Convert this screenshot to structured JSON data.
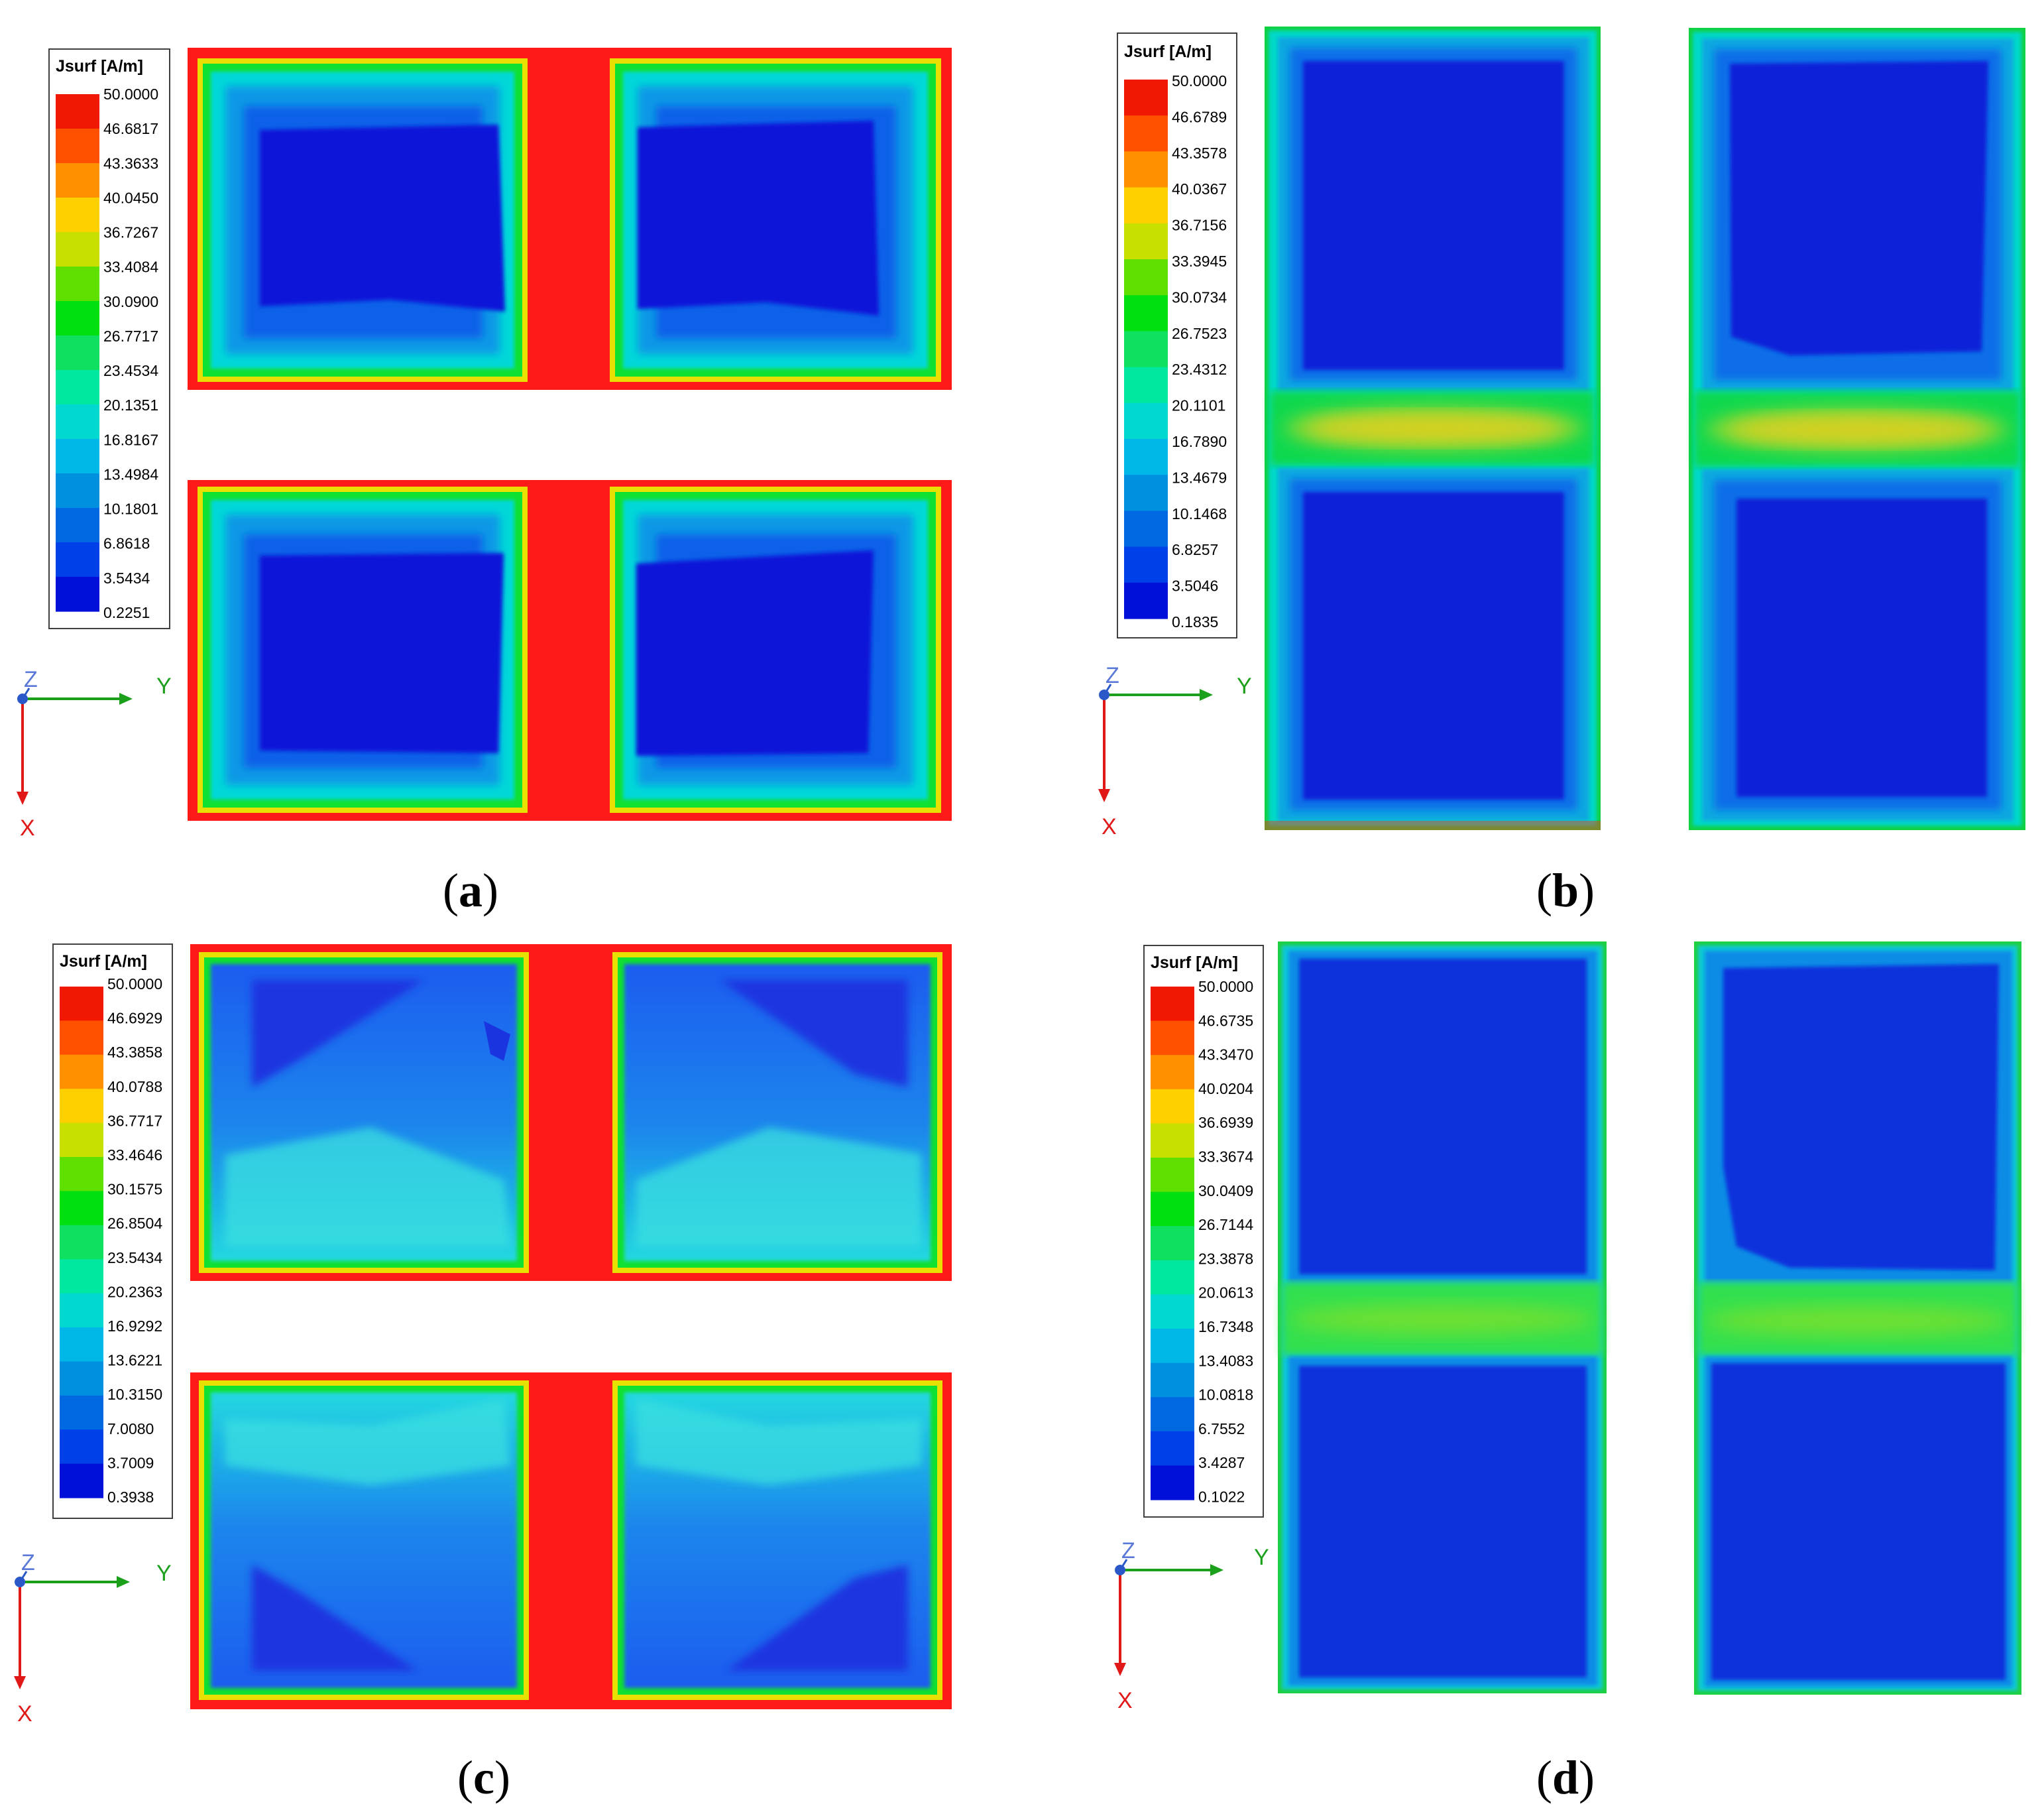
{
  "legend_colors": [
    "#0010d8",
    "#0040e8",
    "#0068e0",
    "#0090e0",
    "#00b8e8",
    "#00d8d0",
    "#00e8a0",
    "#10e060",
    "#00e010",
    "#60e000",
    "#c8e000",
    "#ffd000",
    "#ff9000",
    "#ff5000",
    "#f01800"
  ],
  "field_colors": {
    "edge_red": "#ff1a1a",
    "gap_red": "#ff1a1a",
    "band_green": "#30e050",
    "band_yellow": "#d8d020"
  },
  "panels": [
    {
      "id": "a",
      "caption_letter": "a",
      "legend": {
        "title": "Jsurf [A/m]",
        "values": [
          "50.0000",
          "46.6817",
          "43.3633",
          "40.0450",
          "36.7267",
          "33.4084",
          "30.0900",
          "26.7717",
          "23.4534",
          "20.1351",
          "16.8167",
          "13.4984",
          "10.1801",
          "6.8618",
          "3.5434",
          "0.2251"
        ]
      },
      "axes": {
        "z": "Z",
        "y": "Y",
        "x": "X"
      }
    },
    {
      "id": "b",
      "caption_letter": "b",
      "legend": {
        "title": "Jsurf [A/m]",
        "values": [
          "50.0000",
          "46.6789",
          "43.3578",
          "40.0367",
          "36.7156",
          "33.3945",
          "30.0734",
          "26.7523",
          "23.4312",
          "20.1101",
          "16.7890",
          "13.4679",
          "10.1468",
          "6.8257",
          "3.5046",
          "0.1835"
        ]
      },
      "axes": {
        "z": "Z",
        "y": "Y",
        "x": "X"
      }
    },
    {
      "id": "c",
      "caption_letter": "c",
      "legend": {
        "title": "Jsurf [A/m]",
        "values": [
          "50.0000",
          "46.6929",
          "43.3858",
          "40.0788",
          "36.7717",
          "33.4646",
          "30.1575",
          "26.8504",
          "23.5434",
          "20.2363",
          "16.9292",
          "13.6221",
          "10.3150",
          "7.0080",
          "3.7009",
          "0.3938"
        ]
      },
      "axes": {
        "z": "Z",
        "y": "Y",
        "x": "X"
      }
    },
    {
      "id": "d",
      "caption_letter": "d",
      "legend": {
        "title": "Jsurf [A/m]",
        "values": [
          "50.0000",
          "46.6735",
          "43.3470",
          "40.0204",
          "36.6939",
          "33.3674",
          "30.0409",
          "26.7144",
          "23.3878",
          "20.0613",
          "16.7348",
          "13.4083",
          "10.0818",
          "6.7552",
          "3.4287",
          "0.1022"
        ]
      },
      "axes": {
        "z": "Z",
        "y": "Y",
        "x": "X"
      }
    }
  ]
}
